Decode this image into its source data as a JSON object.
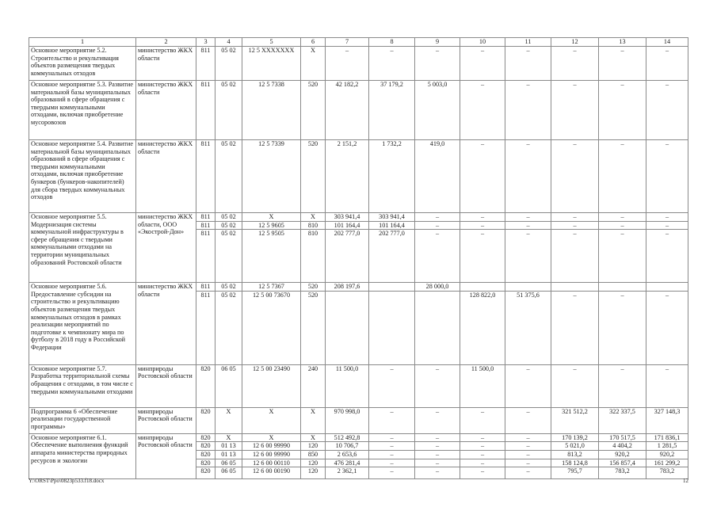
{
  "header": [
    "1",
    "2",
    "3",
    "4",
    "5",
    "6",
    "7",
    "8",
    "9",
    "10",
    "11",
    "12",
    "13",
    "14"
  ],
  "groups": [
    {
      "name": "Основное мероприятие 5.2. Строительство и рекультивация объектов размещения твердых коммунальных отходов",
      "executor": "министерство ЖКХ области",
      "rows": [
        [
          "811",
          "05 02",
          "12 5 XXXXXXX",
          "X",
          "–",
          "–",
          "–",
          "–",
          "–",
          "–",
          "–",
          "–"
        ]
      ]
    },
    {
      "name": "Основное мероприятие 5.3. Развитие материальной базы муниципальных образований в сфере обращения с твердыми коммунальными отходами, включая приобретение мусоровозов",
      "executor": "министерство ЖКХ области",
      "rows": [
        [
          "811",
          "05 02",
          "12 5 7338",
          "520",
          "42 182,2",
          "37 179,2",
          "5 003,0",
          "–",
          "–",
          "–",
          "–",
          "–"
        ]
      ]
    },
    {
      "name": "Основное мероприятие 5.4. Развитие материальной базы муниципальных образований в сфере обращения с твердыми коммунальными отходами, включая приобретение бункеров (бункеров-накопителей) для сбора твердых коммунальных отходов",
      "executor": "министерство ЖКХ области",
      "rows": [
        [
          "811",
          "05 02",
          "12 5 7339",
          "520",
          "2 151,2",
          "1 732,2",
          "419,0",
          "–",
          "–",
          "–",
          "–",
          "–"
        ]
      ]
    },
    {
      "name": "Основное мероприятие 5.5. Модернизация системы коммунальной инфраструктуры в сфере обращения с твердыми коммунальными отходами на территории муниципальных образований Ростовской области",
      "executor": "министерство ЖКХ области, ООО «Экострой-Дон»",
      "rows": [
        [
          "811",
          "05 02",
          "X",
          "X",
          "303 941,4",
          "303 941,4",
          "–",
          "–",
          "–",
          "–",
          "–",
          "–"
        ],
        [
          "811",
          "05 02",
          "12 5 9605",
          "810",
          "101 164,4",
          "101 164,4",
          "–",
          "–",
          "–",
          "–",
          "–",
          "–"
        ],
        [
          "811",
          "05 02",
          "12 5 9505",
          "810",
          "202 777,0",
          "202 777,0",
          "–",
          "–",
          "–",
          "–",
          "–",
          "–"
        ]
      ]
    },
    {
      "name": "Основное мероприятие 5.6. Предоставление субсидии на строительство и рекультивацию объектов размещения твердых коммунальных отходов в рамках реализации мероприятий по подготовке к чемпионату мира по футболу в 2018 году в Российской Федерации",
      "executor": "министерство ЖКХ области",
      "rows": [
        [
          "811",
          "05 02",
          "12 5 7367",
          "520",
          "208 197,6",
          "",
          "28 000,0",
          "",
          "",
          "",
          "",
          ""
        ],
        [
          "811",
          "05 02",
          "12 5 00 73670",
          "520",
          "",
          "",
          "",
          "128 822,0",
          "51 375,6",
          "–",
          "–",
          "–"
        ]
      ]
    },
    {
      "name": "Основное мероприятие 5.7. Разработка территориальной схемы обращения с отходами, в том числе с твердыми коммунальными отходами",
      "executor": "минприроды Ростовской области",
      "rows": [
        [
          "820",
          "06 05",
          "12 5 00 23490",
          "240",
          "11 500,0",
          "–",
          "–",
          "11 500,0",
          "–",
          "–",
          "–",
          "–"
        ]
      ]
    },
    {
      "name": "Подпрограмма 6 «Обеспечение реализации государственной программы»",
      "executor": "минприроды Ростовской области",
      "rows": [
        [
          "820",
          "X",
          "X",
          "X",
          "970 998,0",
          "–",
          "–",
          "–",
          "–",
          "321 512,2",
          "322 337,5",
          "327 148,3"
        ]
      ]
    },
    {
      "name": "Основное мероприятие 6.1. Обеспечение выполнения функций аппарата министерства природных ресурсов и экологии",
      "executor": "минприроды Ростовской области",
      "rows": [
        [
          "820",
          "X",
          "X",
          "X",
          "512 492,8",
          "–",
          "–",
          "–",
          "–",
          "170 139,2",
          "170 517,5",
          "171 836,1"
        ],
        [
          "820",
          "01 13",
          "12 6 00 99990",
          "120",
          "10 706,7",
          "–",
          "–",
          "–",
          "–",
          "5 021,0",
          "4 404,2",
          "1 281,5"
        ],
        [
          "820",
          "01 13",
          "12 6 00 99990",
          "850",
          "2 653,6",
          "–",
          "–",
          "–",
          "–",
          "813,2",
          "920,2",
          "920,2"
        ],
        [
          "820",
          "06 05",
          "12 6 00 00110",
          "120",
          "476 281,4",
          "–",
          "–",
          "–",
          "–",
          "158 124,8",
          "156 857,4",
          "161 299,2"
        ],
        [
          "820",
          "06 05",
          "12 6 00 00190",
          "120",
          "2 362,1",
          "–",
          "–",
          "–",
          "–",
          "795,7",
          "783,2",
          "783,2"
        ]
      ]
    }
  ],
  "footer": {
    "file_path": "Y:\\ORST\\Ppo\\0823p533.f18.docx",
    "page_number": "12"
  }
}
